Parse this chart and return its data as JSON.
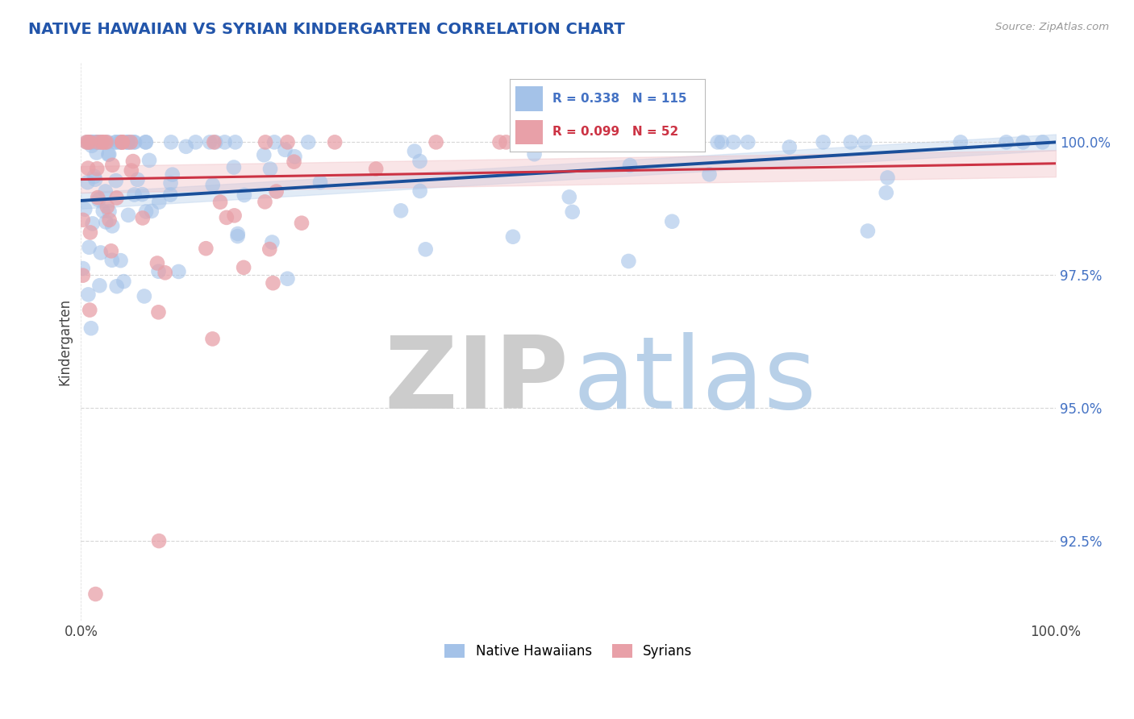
{
  "title": "NATIVE HAWAIIAN VS SYRIAN KINDERGARTEN CORRELATION CHART",
  "source": "Source: ZipAtlas.com",
  "ylabel": "Kindergarten",
  "xlim": [
    0.0,
    100.0
  ],
  "ylim": [
    91.0,
    101.5
  ],
  "yticks": [
    92.5,
    95.0,
    97.5,
    100.0
  ],
  "ytick_labels": [
    "92.5%",
    "95.0%",
    "97.5%",
    "100.0%"
  ],
  "blue_R": 0.338,
  "blue_N": 115,
  "pink_R": 0.099,
  "pink_N": 52,
  "blue_color": "#a4c2e8",
  "pink_color": "#e8a0a8",
  "trend_blue_color": "#1a4f9a",
  "trend_pink_color": "#cc3344",
  "conf_blue_color": "#c5d8ef",
  "conf_pink_color": "#f0c0c5",
  "watermark_zip_color": "#cccccc",
  "watermark_atlas_color": "#b8d0e8",
  "title_color": "#2255aa",
  "ytick_color": "#4472c4",
  "legend_label_blue": "Native Hawaiians",
  "legend_label_pink": "Syrians",
  "background_color": "#ffffff",
  "blue_trend_start_y": 98.9,
  "blue_trend_end_y": 100.0,
  "pink_trend_start_y": 99.3,
  "pink_trend_end_y": 99.6
}
